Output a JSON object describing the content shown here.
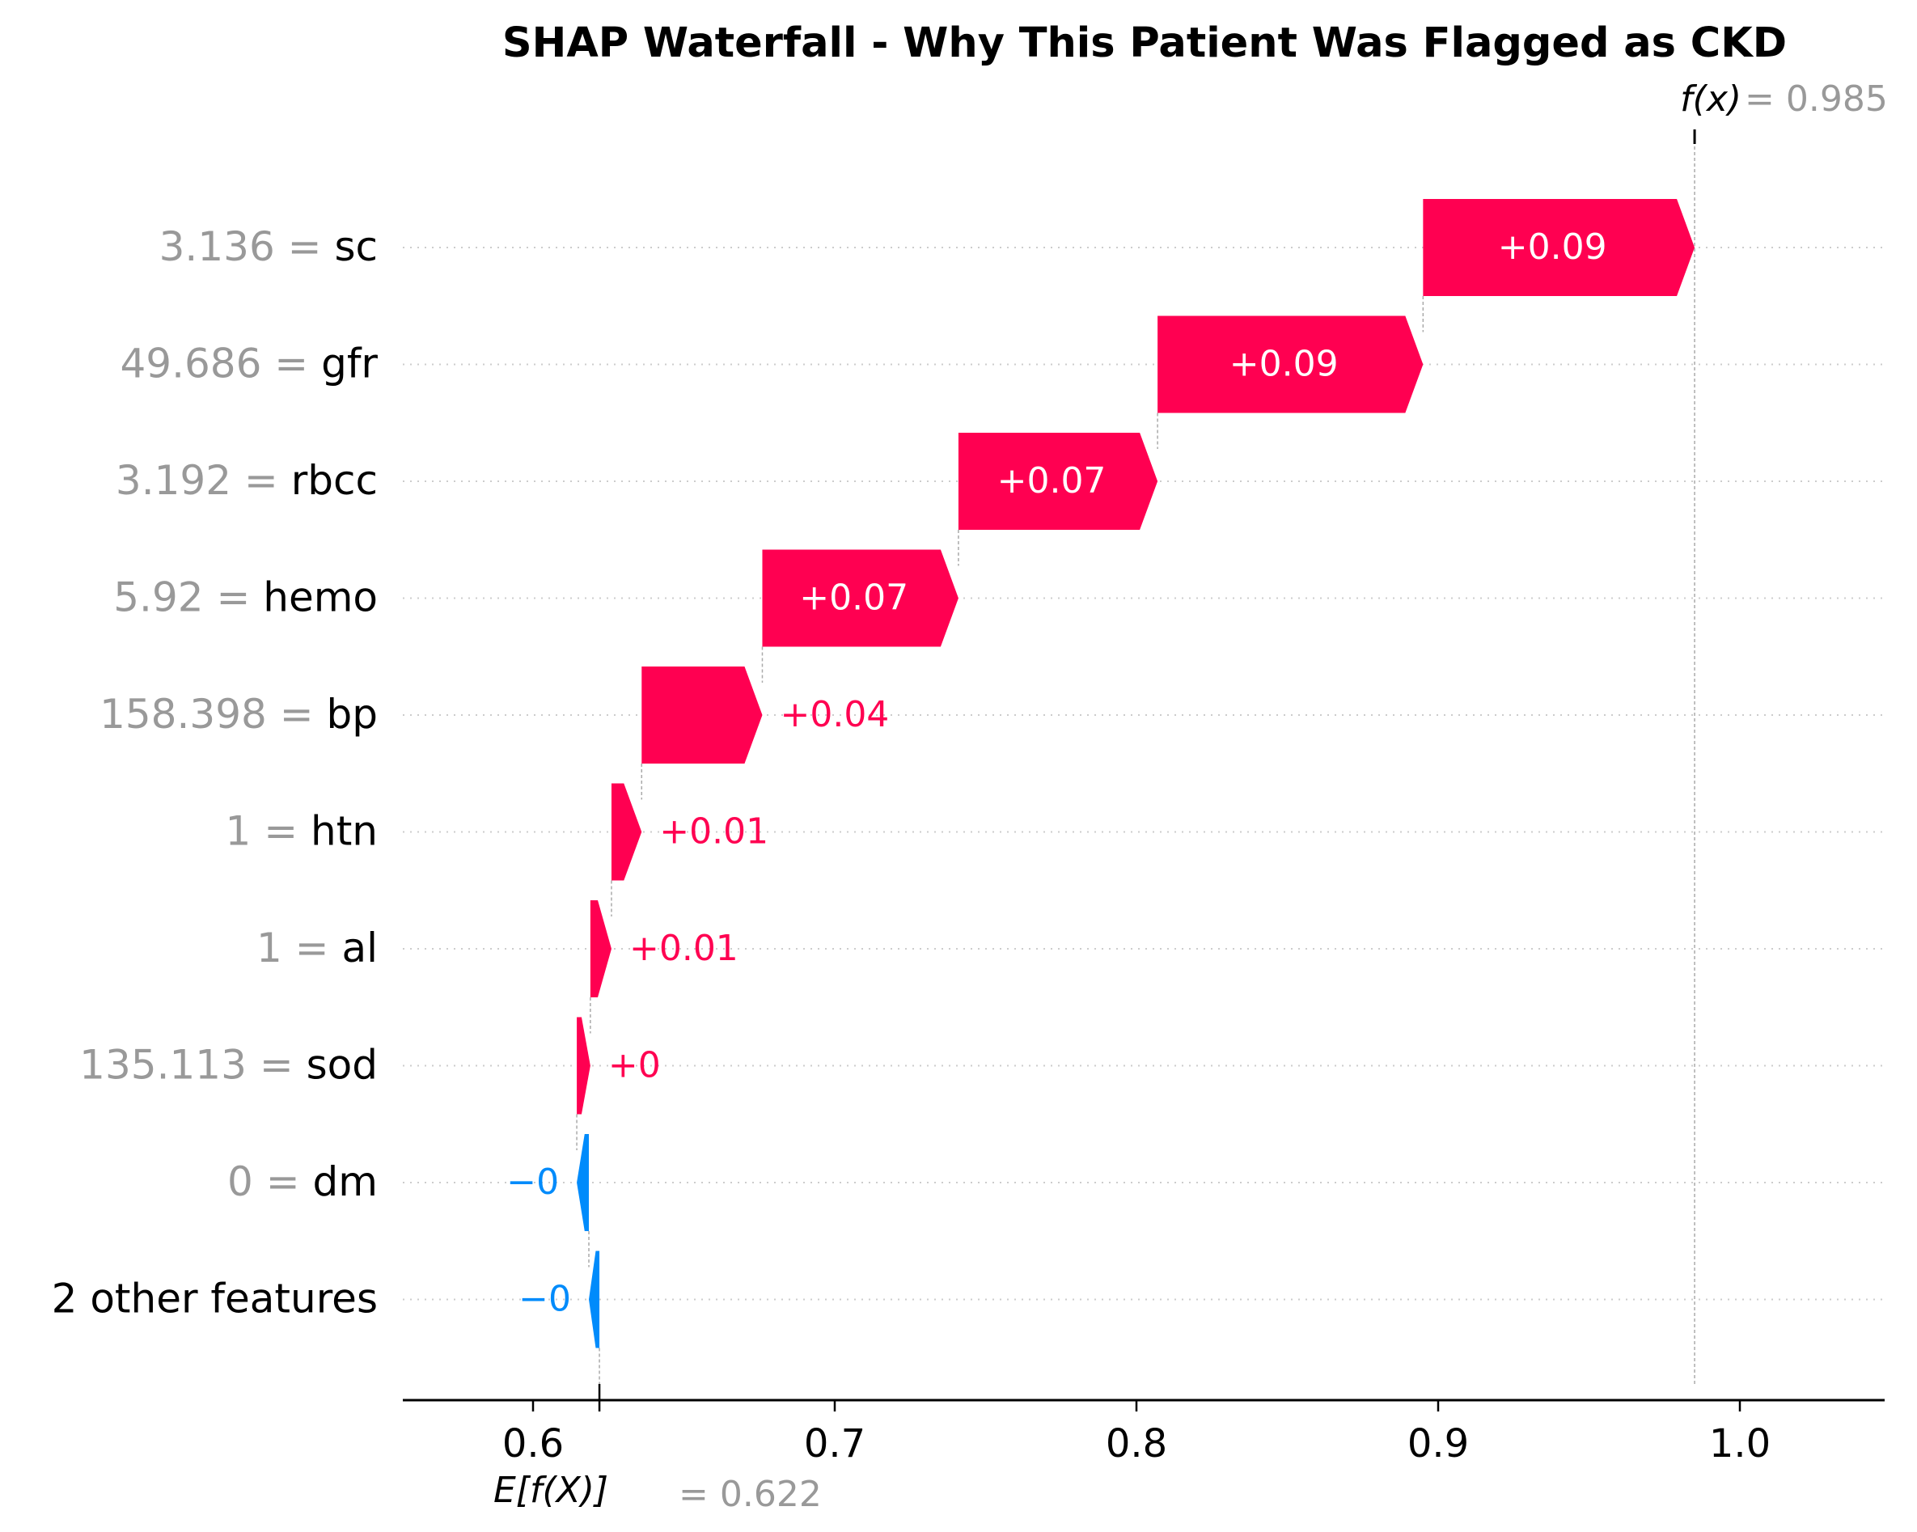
{
  "chart_data": {
    "type": "waterfall",
    "title": "SHAP Waterfall - Why This Patient Was Flagged as CKD",
    "xlim": [
      0.555,
      1.05
    ],
    "x_ticks": [
      0.6,
      0.7,
      0.8,
      0.9,
      1.0
    ],
    "x_tick_labels": [
      "0.6",
      "0.7",
      "0.8",
      "0.9",
      "1.0"
    ],
    "base_value": 0.622,
    "base_value_label": "0.622",
    "base_label": "E[f(X)]",
    "output_value": 0.985,
    "output_value_label": "0.985",
    "output_label": "f(x)",
    "features": [
      {
        "value": "3.136",
        "name": "sc",
        "shap": 0.09,
        "shap_label": "+0.09",
        "start": 0.895,
        "end": 0.985
      },
      {
        "value": "49.686",
        "name": "gfr",
        "shap": 0.09,
        "shap_label": "+0.09",
        "start": 0.807,
        "end": 0.895
      },
      {
        "value": "3.192",
        "name": "rbcc",
        "shap": 0.07,
        "shap_label": "+0.07",
        "start": 0.741,
        "end": 0.807
      },
      {
        "value": "5.92",
        "name": "hemo",
        "shap": 0.07,
        "shap_label": "+0.07",
        "start": 0.676,
        "end": 0.741
      },
      {
        "value": "158.398",
        "name": "bp",
        "shap": 0.04,
        "shap_label": "+0.04",
        "start": 0.636,
        "end": 0.676
      },
      {
        "value": "1",
        "name": "htn",
        "shap": 0.01,
        "shap_label": "+0.01",
        "start": 0.626,
        "end": 0.636
      },
      {
        "value": "1",
        "name": "al",
        "shap": 0.01,
        "shap_label": "+0.01",
        "start": 0.619,
        "end": 0.626
      },
      {
        "value": "135.113",
        "name": "sod",
        "shap": 0.0,
        "shap_label": "+0",
        "start": 0.6145,
        "end": 0.619
      },
      {
        "value": "0",
        "name": "dm",
        "shap": -0.0,
        "shap_label": "−0",
        "start": 0.6185,
        "end": 0.6145
      },
      {
        "value": "",
        "name": "2 other features",
        "shap": -0.0,
        "shap_label": "−0",
        "start": 0.622,
        "end": 0.6185
      }
    ],
    "colors": {
      "positive": "#ff0051",
      "negative": "#008bfb",
      "value_gray": "#999999",
      "grid": "#cccccc"
    }
  }
}
